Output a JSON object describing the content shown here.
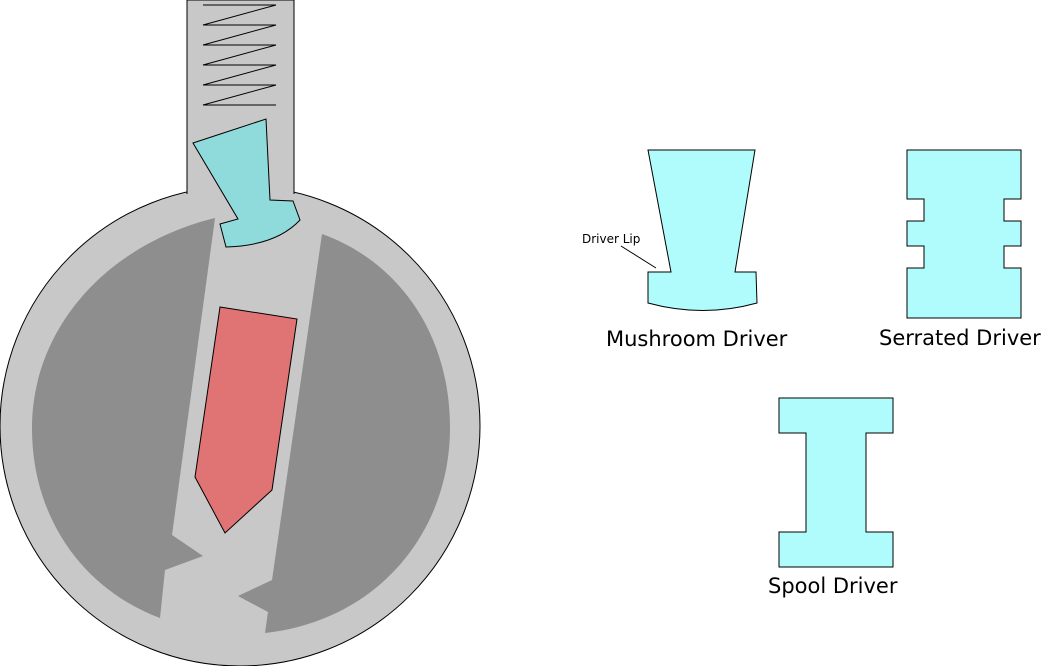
{
  "labels": {
    "mushroom": "Mushroom Driver",
    "serrated": "Serrated Driver",
    "spool": "Spool Driver",
    "driver_lip": "Driver Lip"
  },
  "colors": {
    "housing": "#c8c8c8",
    "plug": "#8e8e8e",
    "driver_in_lock": "#8fdbdc",
    "driver_samples": "#b0fcfc",
    "key_pin": "#e07373",
    "outline": "#000000"
  }
}
